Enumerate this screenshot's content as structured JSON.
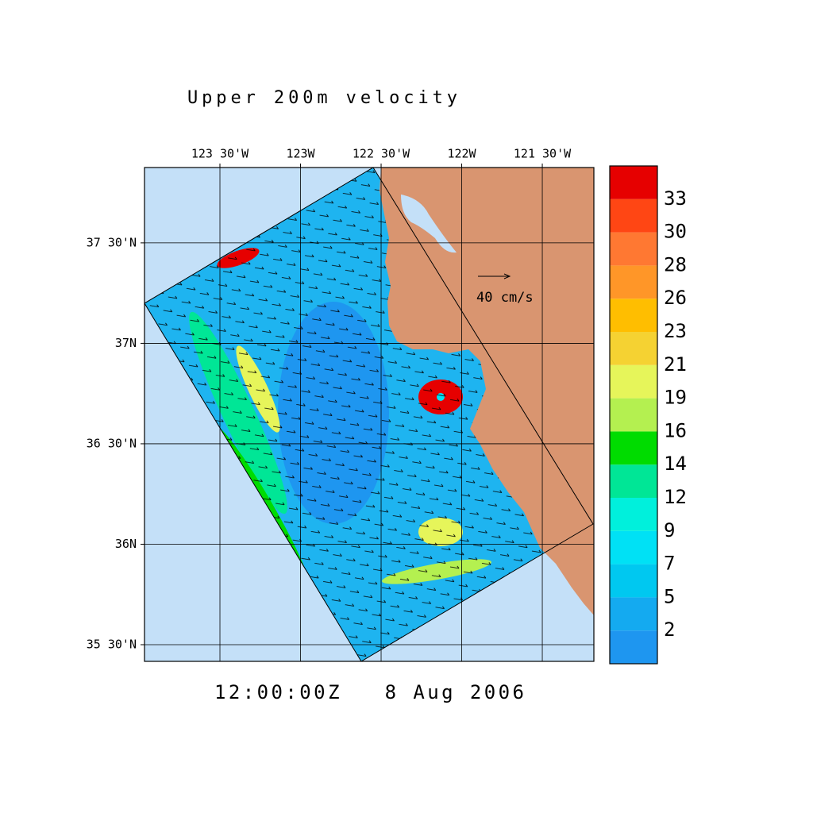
{
  "title": "Upper 200m velocity",
  "map": {
    "xlim": [
      -123.968,
      -121.18
    ],
    "ylim": [
      35.417,
      37.875
    ],
    "lon_ticks": [
      {
        "value": -123.5,
        "label": "123 30'W"
      },
      {
        "value": -123,
        "label": "123W"
      },
      {
        "value": -122.5,
        "label": "122 30'W"
      },
      {
        "value": -122,
        "label": "122W"
      },
      {
        "value": -121.5,
        "label": "121 30'W"
      }
    ],
    "lat_ticks": [
      {
        "value": 35.5,
        "label": "35 30'N"
      },
      {
        "value": 36,
        "label": "36N"
      },
      {
        "value": 36.5,
        "label": "36 30'N"
      },
      {
        "value": 37,
        "label": "37N"
      },
      {
        "value": 37.5,
        "label": "37 30'N"
      }
    ],
    "grid": true
  },
  "vector_scale": {
    "label": "40 cm/s"
  },
  "colorbar": {
    "levels": [
      2,
      5,
      7,
      9,
      12,
      14,
      16,
      19,
      21,
      23,
      26,
      28,
      30,
      33
    ],
    "colors": [
      "#1e96f0",
      "#14aaf0",
      "#00c8f0",
      "#00e1f5",
      "#00f0dc",
      "#00e696",
      "#00dc00",
      "#b4f050",
      "#e6f55a",
      "#f5d232",
      "#ffbe00",
      "#ff9628",
      "#ff7832",
      "#ff4614",
      "#e60000"
    ]
  },
  "timestamp": "12:00:00Z   8 Aug 2006"
}
